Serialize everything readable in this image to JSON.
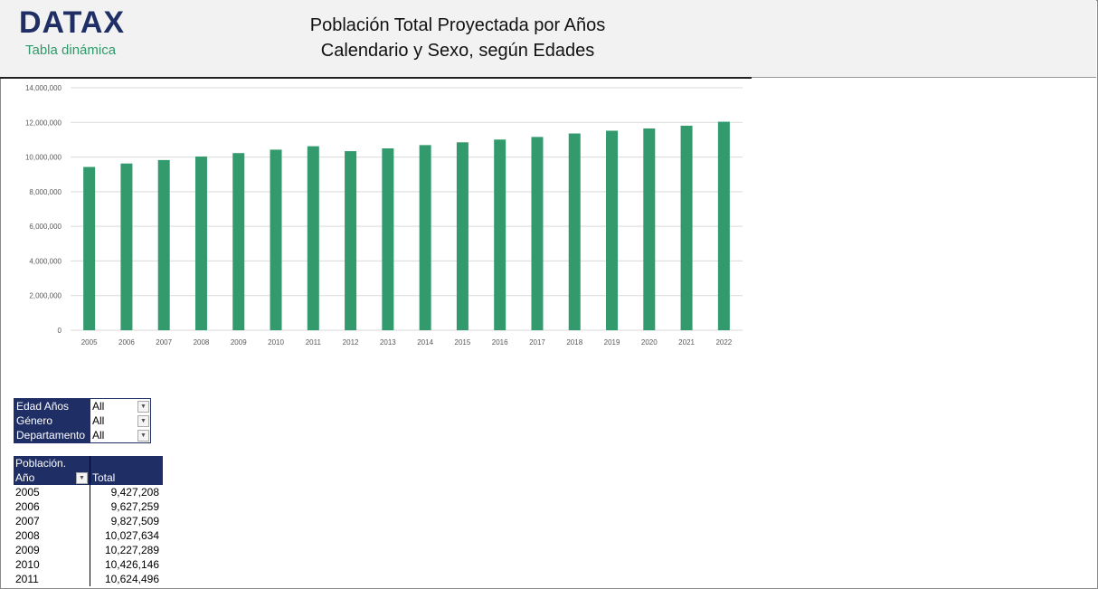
{
  "header": {
    "logo": "DATAX",
    "subtitle": "Tabla dinámica",
    "title_line1": "Población Total Proyectada por Años",
    "title_line2": "Calendario y Sexo, según Edades"
  },
  "filters": [
    {
      "label": "Edad Años",
      "value": "All"
    },
    {
      "label": "Género",
      "value": "All"
    },
    {
      "label": "Departamento",
      "value": "All"
    }
  ],
  "pivot": {
    "header_top": "Población.",
    "row_header": "Año",
    "value_header": "Total",
    "rows": [
      {
        "year": "2005",
        "total": "9,427,208"
      },
      {
        "year": "2006",
        "total": "9,627,259"
      },
      {
        "year": "2007",
        "total": "9,827,509"
      },
      {
        "year": "2008",
        "total": "10,027,634"
      },
      {
        "year": "2009",
        "total": "10,227,289"
      },
      {
        "year": "2010",
        "total": "10,426,146"
      },
      {
        "year": "2011",
        "total": "10,624,496"
      }
    ]
  },
  "chart_data": {
    "type": "bar",
    "title": "",
    "xlabel": "",
    "ylabel": "",
    "ylim": [
      0,
      14000000
    ],
    "grid": true,
    "bar_color": "#339a6e",
    "categories": [
      "2005",
      "2006",
      "2007",
      "2008",
      "2009",
      "2010",
      "2011",
      "2012",
      "2013",
      "2014",
      "2015",
      "2016",
      "2017",
      "2018",
      "2019",
      "2020",
      "2021",
      "2022"
    ],
    "values": [
      9427208,
      9627259,
      9827509,
      10027634,
      10227289,
      10426146,
      10624496,
      10340000,
      10500000,
      10690000,
      10850000,
      11010000,
      11160000,
      11360000,
      11520000,
      11650000,
      11810000,
      12040000
    ],
    "yticks": [
      "0",
      "2,000,000",
      "4,000,000",
      "6,000,000",
      "8,000,000",
      "10,000,000",
      "12,000,000",
      "14,000,000"
    ]
  }
}
